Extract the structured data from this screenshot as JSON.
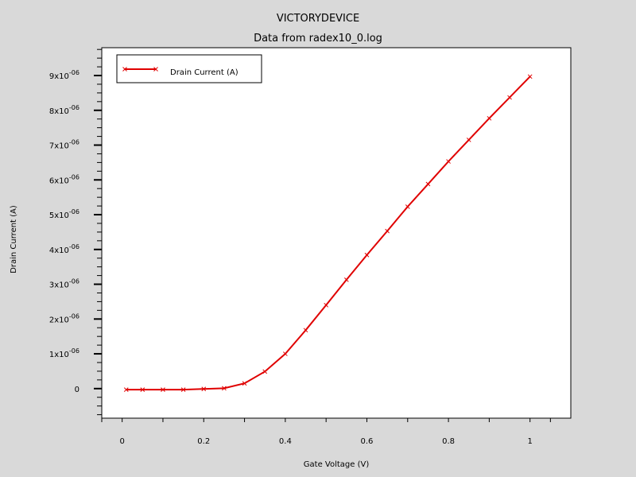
{
  "chart_data": {
    "type": "line",
    "title": "VICTORYDEVICE",
    "subtitle": "Data from radex10_0.log",
    "xlabel": "Gate Voltage (V)",
    "ylabel": "Drain Current (A)",
    "xlim": [
      -0.05,
      1.1
    ],
    "ylim": [
      -8.5e-07,
      9.8e-06
    ],
    "grid": false,
    "legend_position": "top-left",
    "x_ticks": [
      {
        "value": 0,
        "label": "0"
      },
      {
        "value": 0.2,
        "label": "0.2"
      },
      {
        "value": 0.4,
        "label": "0.4"
      },
      {
        "value": 0.6,
        "label": "0.6"
      },
      {
        "value": 0.8,
        "label": "0.8"
      },
      {
        "value": 1,
        "label": "1"
      }
    ],
    "y_ticks": [
      {
        "value": 0,
        "mantissa": "0",
        "exponent": ""
      },
      {
        "value": 1e-06,
        "mantissa": "1x10",
        "exponent": "-06"
      },
      {
        "value": 2e-06,
        "mantissa": "2x10",
        "exponent": "-06"
      },
      {
        "value": 3e-06,
        "mantissa": "3x10",
        "exponent": "-06"
      },
      {
        "value": 4e-06,
        "mantissa": "4x10",
        "exponent": "-06"
      },
      {
        "value": 5e-06,
        "mantissa": "5x10",
        "exponent": "-06"
      },
      {
        "value": 6e-06,
        "mantissa": "6x10",
        "exponent": "-06"
      },
      {
        "value": 7e-06,
        "mantissa": "7x10",
        "exponent": "-06"
      },
      {
        "value": 8e-06,
        "mantissa": "8x10",
        "exponent": "-06"
      },
      {
        "value": 9e-06,
        "mantissa": "9x10",
        "exponent": "-06"
      }
    ],
    "series": [
      {
        "name": "Drain Current (A)",
        "color": "#e00000",
        "marker": "x",
        "x": [
          0.01,
          0.05,
          0.1,
          0.15,
          0.2,
          0.25,
          0.3,
          0.35,
          0.4,
          0.45,
          0.5,
          0.55,
          0.6,
          0.65,
          0.7,
          0.75,
          0.8,
          0.85,
          0.9,
          0.95,
          1.0
        ],
        "y": [
          -3e-08,
          -3e-08,
          -3e-08,
          -3e-08,
          -1e-08,
          1e-08,
          1.5e-07,
          4.9e-07,
          1e-06,
          1.68e-06,
          2.4e-06,
          3.13e-06,
          3.84e-06,
          4.53e-06,
          5.23e-06,
          5.88e-06,
          6.53e-06,
          7.15e-06,
          7.77e-06,
          8.37e-06,
          8.97e-06
        ]
      }
    ]
  }
}
